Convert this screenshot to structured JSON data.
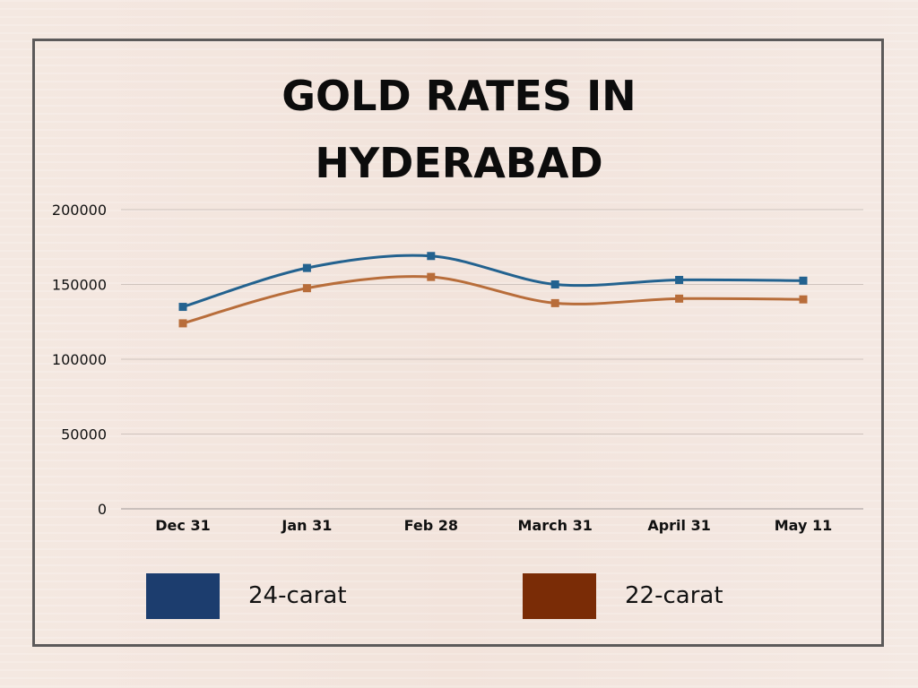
{
  "chart_data": {
    "type": "line",
    "title_lines": [
      "GOLD RATES IN",
      "HYDERABAD"
    ],
    "categories": [
      "Dec 31",
      "Jan 31",
      "Feb 28",
      "March 31",
      "April 31",
      "May 11"
    ],
    "y_ticks": [
      "200000",
      "150000",
      "100000",
      "50000",
      "0"
    ],
    "ylim": [
      0,
      200000
    ],
    "grid": true,
    "legend_position": "bottom",
    "series": [
      {
        "name": "24-carat",
        "color": "#23628f",
        "legend_color": "#1c3d6e",
        "values": [
          135000,
          161000,
          169000,
          150000,
          153000,
          152500
        ]
      },
      {
        "name": "22-carat",
        "color": "#b86d3a",
        "legend_color": "#7a2c06",
        "values": [
          124000,
          147500,
          155000,
          137500,
          140500,
          140000
        ]
      }
    ]
  }
}
